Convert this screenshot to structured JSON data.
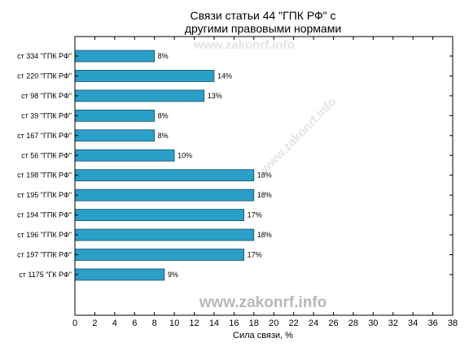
{
  "chart_data": {
    "type": "bar",
    "orientation": "horizontal",
    "title_lines": [
      "Связи статьи 44 \"ГПК РФ\" с",
      "другими правовыми нормами"
    ],
    "xlabel": "Сила связи, %",
    "ylabel": "",
    "xlim": [
      0,
      38
    ],
    "xticks": [
      0,
      2,
      4,
      6,
      8,
      10,
      12,
      14,
      16,
      18,
      20,
      22,
      24,
      26,
      28,
      30,
      32,
      34,
      36,
      38
    ],
    "grid": false,
    "categories": [
      "ст 334 \"ГПК РФ\"",
      "ст 220 \"ГПК РФ\"",
      "ст 98 \"ГПК РФ\"",
      "ст 39 \"ГПК РФ\"",
      "ст 167 \"ГПК РФ\"",
      "ст 56 \"ГПК РФ\"",
      "ст 198 \"ГПК РФ\"",
      "ст 195 \"ГПК РФ\"",
      "ст 194 \"ГПК РФ\"",
      "ст 196 \"ГПК РФ\"",
      "ст 197 \"ГПК РФ\"",
      "ст 1175 \"ГК РФ\""
    ],
    "values": [
      8,
      14,
      13,
      8,
      8,
      10,
      18,
      18,
      17,
      18,
      17,
      9
    ],
    "value_labels": [
      "8%",
      "14%",
      "13%",
      "8%",
      "8%",
      "10%",
      "18%",
      "18%",
      "17%",
      "18%",
      "17%",
      "9%"
    ],
    "bar_color": "#2a9fc8",
    "bar_edge_color": "#1f4f63",
    "watermark": "www.zakonrf.info"
  }
}
